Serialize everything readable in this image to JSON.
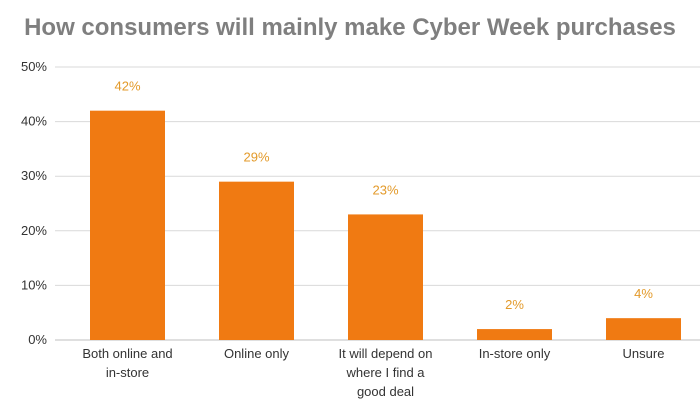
{
  "chart_data": {
    "type": "bar",
    "title": "How consumers will mainly make Cyber Week purchases",
    "xlabel": "",
    "ylabel": "",
    "ylim": [
      0,
      50
    ],
    "yticks": [
      "0%",
      "10%",
      "20%",
      "30%",
      "40%",
      "50%"
    ],
    "grid": true,
    "categories": [
      [
        "Both online and",
        "in-store"
      ],
      [
        "Online only"
      ],
      [
        "It will depend on",
        "where I find a",
        "good deal"
      ],
      [
        "In-store only"
      ],
      [
        "Unsure"
      ]
    ],
    "values": [
      42,
      29,
      23,
      2,
      4
    ],
    "data_labels": [
      "42%",
      "29%",
      "23%",
      "2%",
      "4%"
    ],
    "colors": {
      "bar": "#f07a12",
      "label": "#e39a2a",
      "grid": "#d9d9d9",
      "axis": "#bfbfbf"
    }
  }
}
